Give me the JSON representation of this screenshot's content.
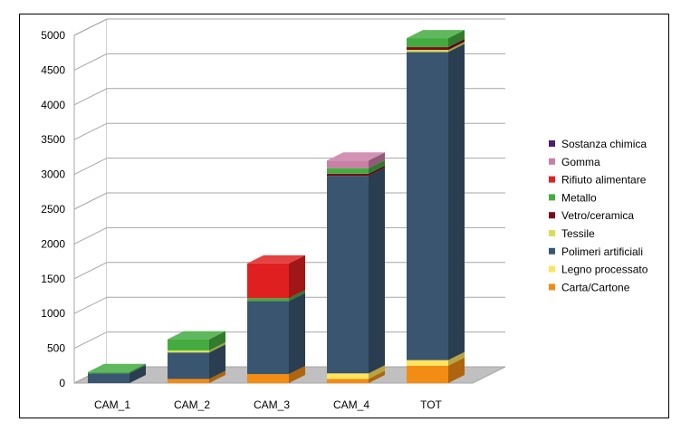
{
  "chart_data": {
    "type": "bar",
    "stacked": true,
    "three_d": true,
    "categories": [
      "CAM_1",
      "CAM_2",
      "CAM_3",
      "CAM_4",
      "TOT"
    ],
    "ylim": [
      0,
      5000
    ],
    "yticks": [
      0,
      500,
      1000,
      1500,
      2000,
      2500,
      3000,
      3500,
      4000,
      4500,
      5000
    ],
    "grid": true,
    "legend_position": "right",
    "series": [
      {
        "name": "Carta/Cartone",
        "color": "#f28c13",
        "values": [
          0,
          60,
          130,
          60,
          250
        ]
      },
      {
        "name": "Legno processato",
        "color": "#ffe45c",
        "values": [
          0,
          0,
          0,
          80,
          80
        ]
      },
      {
        "name": "Polimeri artificiali",
        "color": "#3a5570",
        "values": [
          140,
          380,
          1050,
          2840,
          4430
        ]
      },
      {
        "name": "Tessile",
        "color": "#d4e157",
        "values": [
          0,
          30,
          0,
          0,
          30
        ]
      },
      {
        "name": "Vetro/ceramica",
        "color": "#7a0a1a",
        "values": [
          0,
          0,
          0,
          30,
          40
        ]
      },
      {
        "name": "Metallo",
        "color": "#43ab3f",
        "values": [
          20,
          160,
          40,
          80,
          130
        ]
      },
      {
        "name": "Rifiuto alimentare",
        "color": "#e02020",
        "values": [
          0,
          0,
          500,
          0,
          0
        ]
      },
      {
        "name": "Gomma",
        "color": "#c97fa6",
        "values": [
          0,
          0,
          0,
          110,
          0
        ]
      },
      {
        "name": "Sostanza chimica",
        "color": "#4a2070",
        "values": [
          0,
          0,
          0,
          0,
          0
        ]
      }
    ],
    "legend_order": [
      "Sostanza chimica",
      "Gomma",
      "Rifiuto alimentare",
      "Metallo",
      "Vetro/ceramica",
      "Tessile",
      "Polimeri artificiali",
      "Legno processato",
      "Carta/Cartone"
    ]
  }
}
